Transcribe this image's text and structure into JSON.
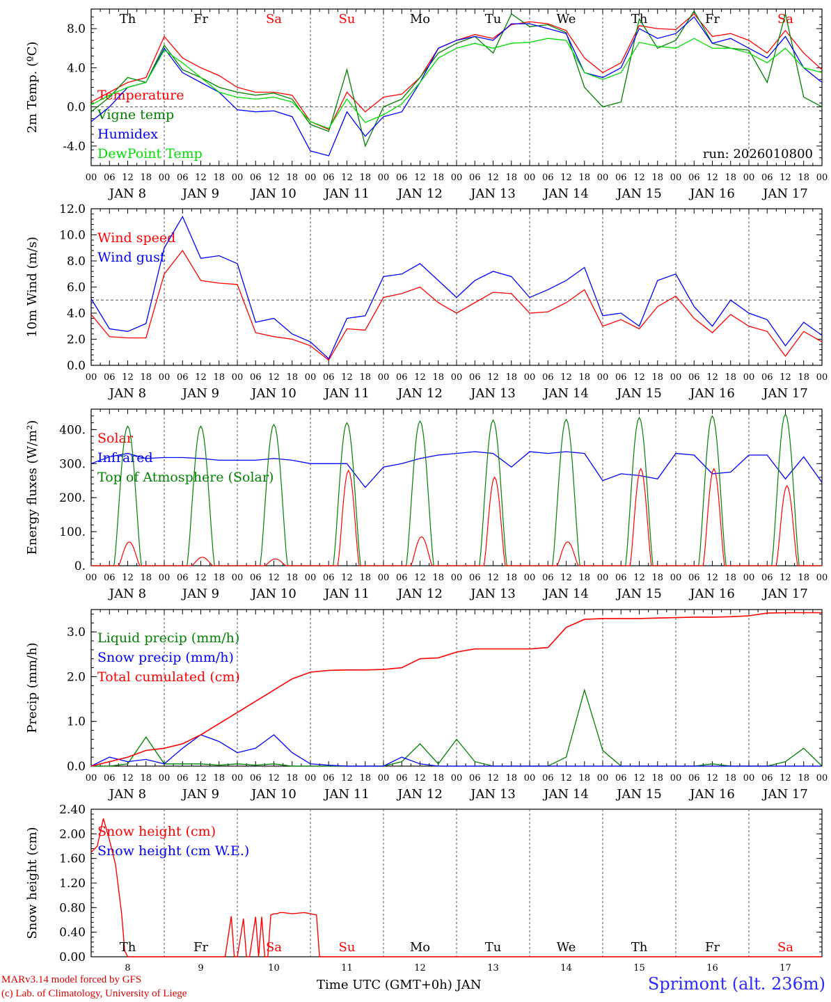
{
  "figure": {
    "run_label": "run: 2026010800",
    "credit_line1": "MARv3.14 model forced by GFS",
    "credit_line2": "(c) Lab. of Climatology, University of Liege",
    "station": "Sprimont (alt. 236m)",
    "time_axis_label": "Time UTC (GMT+0h) JAN"
  },
  "chart_data": [
    {
      "type": "line",
      "ylabel": "2m Temp. (ºC)",
      "ylim": [
        -6,
        10
      ],
      "yticks": [
        -4.0,
        0.0,
        4.0,
        8.0
      ],
      "ytick_labels": [
        "-4.0",
        "0.0",
        "4.0",
        "8.0"
      ],
      "ref_line": 0,
      "day_labels": [
        "Th",
        "Fr",
        "Sa",
        "Su",
        "Mo",
        "Tu",
        "We",
        "Th",
        "Fr",
        "Sa"
      ],
      "weekend_days": [
        2,
        3,
        9
      ],
      "x_hours_from_jan8_00": [
        0,
        6,
        12,
        18,
        24,
        30,
        36,
        42,
        48,
        54,
        60,
        66,
        72,
        78,
        84,
        90,
        96,
        102,
        108,
        114,
        120,
        126,
        132,
        138,
        144,
        150,
        156,
        162,
        168,
        174,
        180,
        186,
        192,
        198,
        204,
        210,
        216,
        222,
        228,
        234,
        240
      ],
      "legend": [
        "Temperature",
        "Vigne temp",
        "Humidex",
        "DewPoint Temp"
      ],
      "series": [
        {
          "name": "Temperature",
          "color": "#ff0000",
          "values": [
            0.5,
            1.5,
            2.5,
            3.0,
            7.2,
            5.0,
            4.0,
            3.2,
            2.0,
            1.5,
            1.5,
            1.2,
            -1.5,
            -2.3,
            1.5,
            -0.5,
            1.0,
            1.3,
            3.0,
            6.0,
            6.8,
            7.4,
            7.0,
            8.4,
            8.7,
            8.5,
            7.8,
            5.0,
            3.5,
            4.5,
            8.3,
            8.0,
            7.9,
            9.5,
            7.2,
            7.5,
            6.8,
            5.5,
            7.8,
            5.5,
            3.8
          ]
        },
        {
          "name": "Vigne temp",
          "color": "#008000",
          "values": [
            -0.5,
            1.0,
            3.0,
            2.5,
            6.3,
            3.8,
            3.0,
            2.0,
            1.5,
            1.2,
            1.4,
            0.8,
            -1.8,
            -2.5,
            3.8,
            -4.0,
            0.0,
            0.8,
            3.0,
            5.5,
            6.5,
            7.2,
            5.5,
            9.5,
            8.2,
            8.4,
            7.6,
            2.0,
            0.0,
            0.5,
            9.0,
            6.0,
            6.8,
            9.8,
            6.5,
            6.0,
            5.8,
            2.5,
            9.5,
            1.0,
            0.0
          ]
        },
        {
          "name": "Humidex",
          "color": "#0000ff",
          "values": [
            -1.5,
            0.0,
            2.0,
            2.5,
            6.0,
            3.5,
            2.5,
            1.5,
            -0.3,
            -0.5,
            -0.4,
            -1.0,
            -4.5,
            -5.0,
            -0.5,
            -3.0,
            -1.0,
            -0.5,
            2.5,
            6.0,
            6.8,
            7.2,
            6.8,
            8.5,
            8.5,
            8.0,
            7.5,
            3.5,
            3.0,
            4.0,
            8.0,
            7.0,
            7.5,
            9.2,
            6.5,
            7.0,
            6.0,
            5.0,
            7.2,
            4.0,
            2.5
          ]
        },
        {
          "name": "DewPoint Temp",
          "color": "#00dd00",
          "values": [
            0.2,
            1.2,
            2.0,
            2.5,
            5.8,
            4.5,
            3.0,
            1.5,
            1.0,
            0.8,
            1.0,
            0.5,
            -1.5,
            -2.2,
            0.8,
            -1.6,
            -0.8,
            0.3,
            2.5,
            5.0,
            6.0,
            6.5,
            6.0,
            6.5,
            6.6,
            7.0,
            6.8,
            3.5,
            2.8,
            3.5,
            6.6,
            6.2,
            6.0,
            7.0,
            6.0,
            6.0,
            5.5,
            4.5,
            6.0,
            4.0,
            3.5
          ]
        }
      ]
    },
    {
      "type": "line",
      "ylabel": "10m Wind (m/s)",
      "ylim": [
        0,
        12
      ],
      "yticks": [
        0.0,
        2.0,
        4.0,
        6.0,
        8.0,
        10.0,
        12.0
      ],
      "ytick_labels": [
        "0.0",
        "2.0",
        "4.0",
        "6.0",
        "8.0",
        "10.0",
        "12.0"
      ],
      "ref_line": 5,
      "x_hours_from_jan8_00": [
        0,
        6,
        12,
        18,
        24,
        30,
        36,
        42,
        48,
        54,
        60,
        66,
        72,
        78,
        84,
        90,
        96,
        102,
        108,
        114,
        120,
        126,
        132,
        138,
        144,
        150,
        156,
        162,
        168,
        174,
        180,
        186,
        192,
        198,
        204,
        210,
        216,
        222,
        228,
        234,
        240
      ],
      "legend": [
        "Wind speed",
        "Wind gust"
      ],
      "series": [
        {
          "name": "Wind speed",
          "color": "#ff0000",
          "values": [
            3.9,
            2.2,
            2.1,
            2.1,
            7.0,
            8.8,
            6.5,
            6.3,
            6.2,
            2.5,
            2.2,
            2.0,
            1.5,
            0.4,
            2.8,
            2.7,
            5.2,
            5.5,
            6.0,
            4.8,
            4.0,
            4.8,
            5.6,
            5.5,
            4.0,
            4.1,
            4.8,
            5.8,
            3.0,
            3.5,
            2.8,
            4.5,
            5.3,
            3.6,
            2.5,
            3.9,
            3.0,
            2.6,
            0.7,
            2.6,
            1.8
          ]
        },
        {
          "name": "Wind gust",
          "color": "#0000ff",
          "values": [
            5.1,
            2.8,
            2.6,
            3.2,
            9.0,
            11.4,
            8.2,
            8.4,
            7.8,
            3.3,
            3.6,
            2.4,
            1.8,
            0.5,
            3.6,
            3.8,
            6.8,
            7.0,
            7.8,
            6.5,
            5.2,
            6.5,
            7.2,
            6.8,
            5.2,
            5.8,
            6.5,
            7.5,
            3.8,
            4.0,
            3.0,
            6.5,
            7.0,
            4.5,
            3.0,
            5.0,
            4.0,
            3.5,
            1.5,
            3.3,
            2.3
          ]
        }
      ]
    },
    {
      "type": "line",
      "ylabel": "Energy fluxes (W/m²)",
      "ylim": [
        0,
        460
      ],
      "yticks": [
        0,
        100,
        200,
        300,
        400
      ],
      "ytick_labels": [
        "0.",
        "100.",
        "200.",
        "300.",
        "400."
      ],
      "legend": [
        "Solar",
        "Infrared",
        "Top of Atmosphere (Solar)"
      ],
      "series": [
        {
          "name": "Solar",
          "color": "#ff0000",
          "daily_peaks": [
            70,
            25,
            20,
            280,
            85,
            260,
            70,
            285,
            285,
            235
          ]
        },
        {
          "name": "Infrared",
          "color": "#0000ff",
          "x_hours_from_jan8_00": [
            0,
            6,
            12,
            18,
            24,
            30,
            36,
            42,
            48,
            54,
            60,
            66,
            72,
            78,
            84,
            90,
            96,
            102,
            108,
            114,
            120,
            126,
            132,
            138,
            144,
            150,
            156,
            162,
            168,
            174,
            180,
            186,
            192,
            198,
            204,
            210,
            216,
            222,
            228,
            234,
            240
          ],
          "values": [
            300,
            320,
            330,
            315,
            318,
            318,
            315,
            310,
            310,
            310,
            315,
            310,
            300,
            300,
            300,
            230,
            290,
            300,
            315,
            325,
            330,
            335,
            330,
            290,
            335,
            330,
            335,
            330,
            250,
            270,
            265,
            255,
            330,
            325,
            270,
            275,
            325,
            325,
            255,
            320,
            245
          ]
        },
        {
          "name": "Top of Atmosphere (Solar)",
          "color": "#008000",
          "daily_peaks": [
            410,
            410,
            415,
            420,
            425,
            428,
            430,
            435,
            440,
            445
          ]
        }
      ]
    },
    {
      "type": "line",
      "ylabel": "Precip (mm/h)",
      "ylim": [
        0,
        3.5
      ],
      "yticks": [
        0.0,
        1.0,
        2.0,
        3.0
      ],
      "ytick_labels": [
        "0.0",
        "1.0",
        "2.0",
        "3.0"
      ],
      "x_hours_from_jan8_00": [
        0,
        6,
        12,
        18,
        24,
        30,
        36,
        42,
        48,
        54,
        60,
        66,
        72,
        78,
        84,
        90,
        96,
        102,
        108,
        114,
        120,
        126,
        132,
        138,
        144,
        150,
        156,
        162,
        168,
        174,
        180,
        186,
        192,
        198,
        204,
        210,
        216,
        222,
        228,
        234,
        240
      ],
      "legend": [
        "Liquid precip (mm/h)",
        "Snow precip (mm/h)",
        "Total cumulated (cm)"
      ],
      "series": [
        {
          "name": "Liquid precip (mm/h)",
          "color": "#008000",
          "values": [
            0,
            0,
            0.05,
            0.65,
            0.05,
            0.05,
            0.05,
            0.02,
            0.05,
            0.02,
            0.05,
            0,
            0,
            0,
            0,
            0,
            0,
            0.1,
            0.5,
            0.05,
            0.6,
            0.1,
            0,
            0,
            0,
            0,
            0.2,
            1.7,
            0.35,
            0,
            0,
            0,
            0,
            0,
            0.05,
            0,
            0,
            0,
            0.1,
            0.4,
            0
          ]
        },
        {
          "name": "Snow precip (mm/h)",
          "color": "#0000ff",
          "values": [
            0,
            0.2,
            0.1,
            0.15,
            0.05,
            0.4,
            0.7,
            0.55,
            0.3,
            0.4,
            0.7,
            0.3,
            0.05,
            0.02,
            0,
            0,
            0,
            0.2,
            0.05,
            0,
            0,
            0,
            0,
            0,
            0,
            0,
            0,
            0,
            0,
            0,
            0,
            0,
            0,
            0,
            0,
            0,
            0,
            0,
            0,
            0,
            0
          ]
        },
        {
          "name": "Total cumulated (cm)",
          "color": "#ff0000",
          "values": [
            0,
            0.1,
            0.2,
            0.35,
            0.4,
            0.5,
            0.7,
            0.95,
            1.2,
            1.45,
            1.7,
            1.95,
            2.1,
            2.14,
            2.15,
            2.15,
            2.16,
            2.2,
            2.4,
            2.42,
            2.55,
            2.62,
            2.62,
            2.62,
            2.62,
            2.65,
            3.1,
            3.28,
            3.3,
            3.3,
            3.3,
            3.31,
            3.32,
            3.33,
            3.33,
            3.34,
            3.36,
            3.42,
            3.43,
            3.43,
            3.43
          ]
        }
      ]
    },
    {
      "type": "line",
      "ylabel": "Snow height (cm)",
      "ylim": [
        0,
        2.4
      ],
      "yticks": [
        0.0,
        0.4,
        0.8,
        1.2,
        1.6,
        2.0,
        2.4
      ],
      "ytick_labels": [
        "0.00",
        "0.40",
        "0.80",
        "1.20",
        "1.60",
        "2.00",
        "2.40"
      ],
      "day_labels": [
        "Th",
        "Fr",
        "Sa",
        "Su",
        "Mo",
        "Tu",
        "We",
        "Th",
        "Fr",
        "Sa"
      ],
      "day_numbers": [
        "8",
        "9",
        "10",
        "11",
        "12",
        "13",
        "14",
        "15",
        "16",
        "17"
      ],
      "legend": [
        "Snow height (cm)",
        "Snow height (cm W.E.)"
      ],
      "series": [
        {
          "name": "Snow height (cm)",
          "color": "#ff0000",
          "x_hours_from_jan8_00": [
            0,
            2,
            4,
            6,
            8,
            10,
            11,
            12,
            13,
            20,
            40,
            44,
            46,
            47,
            48,
            50,
            51,
            52,
            54,
            55,
            56,
            57,
            58,
            59,
            60,
            61,
            62,
            63,
            66,
            70,
            72,
            74,
            75,
            76,
            120,
            240
          ],
          "values": [
            1.7,
            1.8,
            2.25,
            1.9,
            1.5,
            0.7,
            0.1,
            0,
            0,
            0,
            0,
            0,
            0.66,
            0,
            0,
            0.62,
            0,
            0,
            0.65,
            0,
            0.65,
            0,
            0,
            0.68,
            0.7,
            0.7,
            0.72,
            0.72,
            0.7,
            0.72,
            0.7,
            0.68,
            0,
            0,
            0,
            0
          ]
        },
        {
          "name": "Snow height (cm W.E.)",
          "color": "#0000ff",
          "values": []
        }
      ]
    }
  ],
  "x_axis": {
    "hour_labels": [
      "00",
      "06",
      "12",
      "18"
    ],
    "end_label": "00",
    "date_labels": [
      "JAN  8",
      "JAN  9",
      "JAN 10",
      "JAN 11",
      "JAN 12",
      "JAN 13",
      "JAN 14",
      "JAN 15",
      "JAN 16",
      "JAN 17"
    ]
  },
  "colors": {
    "red": "#ff0000",
    "green": "#008000",
    "blue": "#0000ff",
    "lightgreen": "#00dd00",
    "weekend": "#ff0000"
  }
}
